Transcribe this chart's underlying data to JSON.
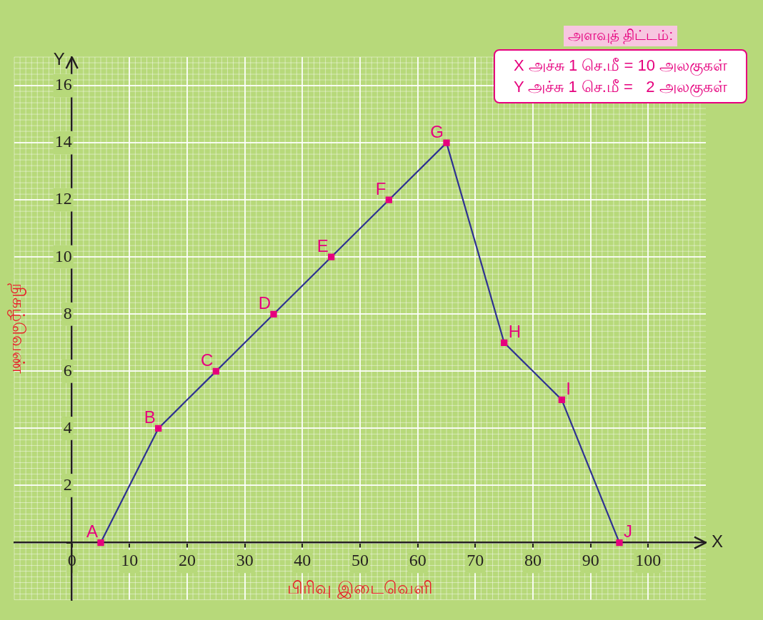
{
  "chart_data": {
    "type": "line",
    "xlabel": "பிரிவு இடைவெளி",
    "ylabel": "நிகழ்வெண்",
    "x": [
      5,
      15,
      25,
      35,
      45,
      55,
      65,
      75,
      85,
      95
    ],
    "series": [
      {
        "color": "#2e3192",
        "values": [
          0,
          4,
          6,
          8,
          10,
          12,
          14,
          7,
          5,
          0
        ]
      }
    ],
    "marker": "square",
    "line_style": "solid",
    "grid": true,
    "legend": false,
    "xlim": [
      -10,
      110
    ],
    "ylim": [
      -2,
      17
    ],
    "xticks": [
      0,
      10,
      20,
      30,
      40,
      50,
      60,
      70,
      80,
      90,
      100
    ],
    "yticks": [
      {
        "value": 0,
        "label": null
      },
      2,
      4,
      6,
      8,
      10,
      12,
      14,
      16
    ],
    "annotations": [
      "அளவுத் திட்டம்:",
      "X அச்சு 1 செ.மீ = 10 அலகுகள்",
      "Y அச்சு 1 செ.மீ =   2 அலகுகள்",
      {
        "text": "A",
        "x": 5,
        "y": 0
      },
      {
        "text": "B",
        "x": 15,
        "y": 4
      },
      {
        "text": "C",
        "x": 25,
        "y": 6
      },
      {
        "text": "D",
        "x": 35,
        "y": 8
      },
      {
        "text": "E",
        "x": 45,
        "y": 10
      },
      {
        "text": "F",
        "x": 55,
        "y": 12
      },
      {
        "text": "G",
        "x": 65,
        "y": 14
      },
      {
        "text": "H",
        "x": 75,
        "y": 7
      },
      {
        "text": "I",
        "x": 85,
        "y": 5
      },
      {
        "text": "J",
        "x": 95,
        "y": 0
      },
      "X",
      "Y"
    ]
  }
}
